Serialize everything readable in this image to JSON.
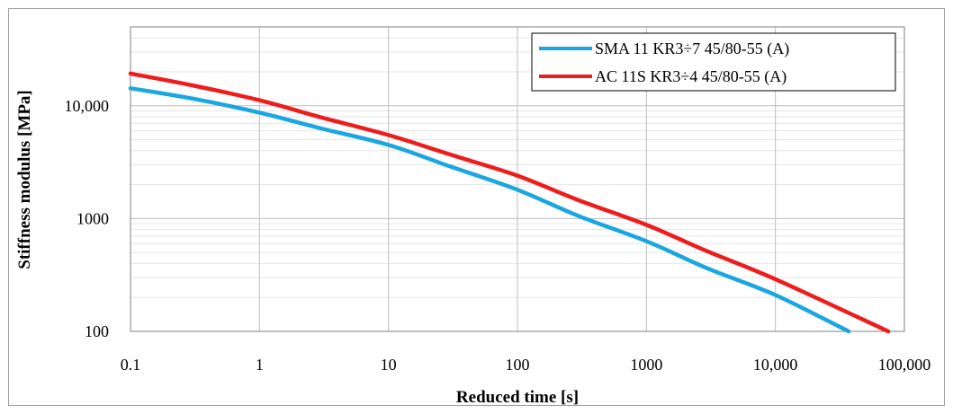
{
  "chart_data": {
    "type": "line",
    "xlabel": "Reduced time [s]",
    "ylabel": "Stiffness modulus [MPa]",
    "xscale": "log",
    "yscale": "log",
    "xlim": [
      0.1,
      100000
    ],
    "ylim": [
      100,
      50000
    ],
    "grid": true,
    "legend_position": "top-right",
    "x_ticks": [
      {
        "value": 0.1,
        "label": "0.1"
      },
      {
        "value": 1,
        "label": "1"
      },
      {
        "value": 10,
        "label": "10"
      },
      {
        "value": 100,
        "label": "100"
      },
      {
        "value": 1000,
        "label": "1000"
      },
      {
        "value": 10000,
        "label": "10,000"
      },
      {
        "value": 100000,
        "label": "100,000"
      }
    ],
    "y_ticks": [
      {
        "value": 100,
        "label": "100"
      },
      {
        "value": 1000,
        "label": "1000"
      },
      {
        "value": 10000,
        "label": "10,000"
      }
    ],
    "series": [
      {
        "name": "SMA 11 KR3÷7 45/80-55 (A)",
        "color": "#1aa6e0",
        "x": [
          0.1,
          0.3,
          1,
          3,
          10,
          30,
          100,
          300,
          1000,
          3000,
          10000,
          37000
        ],
        "y": [
          14300,
          11600,
          8700,
          6300,
          4500,
          2900,
          1800,
          1050,
          630,
          360,
          210,
          100
        ]
      },
      {
        "name": "AC 11S KR3÷4 45/80-55 (A)",
        "color": "#ee1c1c",
        "x": [
          0.1,
          0.3,
          1,
          3,
          10,
          30,
          100,
          300,
          1000,
          3000,
          10000,
          75000
        ],
        "y": [
          19300,
          15200,
          11200,
          7900,
          5500,
          3700,
          2400,
          1450,
          880,
          510,
          290,
          100
        ]
      }
    ]
  }
}
